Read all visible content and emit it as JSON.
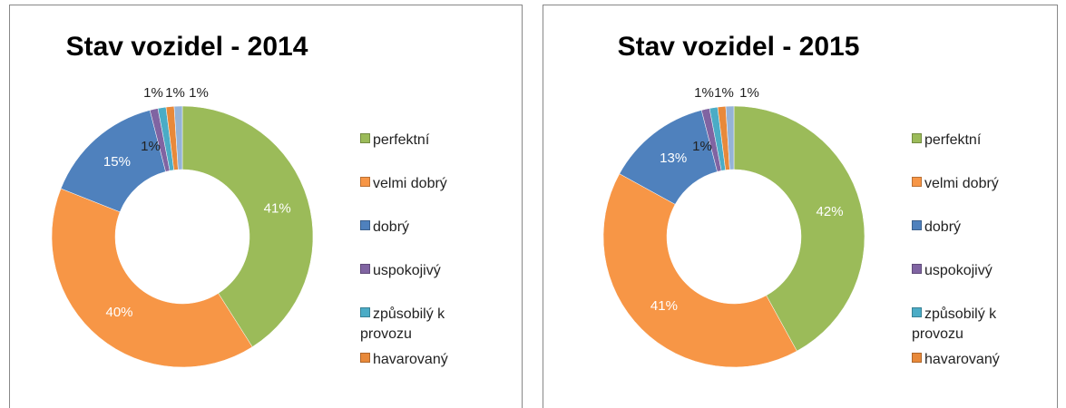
{
  "chart_data": [
    {
      "type": "donut",
      "title": "Stav vozidel - 2014",
      "categories": [
        "perfektní",
        "velmi dobrý",
        "dobrý",
        "uspokojivý",
        "způsobilý k provozu",
        "havarovaný",
        null
      ],
      "values": [
        41,
        40,
        15,
        1,
        1,
        1,
        1
      ],
      "value_labels": [
        "41%",
        "40%",
        "15%",
        "1%",
        "1%",
        "1%",
        "1%"
      ],
      "colors": [
        "#9bbb59",
        "#f79646",
        "#4f81bd",
        "#8064a2",
        "#4bacc6",
        "#e8893a",
        "#95b3d7"
      ],
      "legend": "right"
    },
    {
      "type": "donut",
      "title": "Stav vozidel - 2015",
      "categories": [
        "perfektní",
        "velmi dobrý",
        "dobrý",
        "uspokojivý",
        "způsobilý k provozu",
        "havarovaný",
        null
      ],
      "values": [
        42,
        41,
        13,
        1,
        1,
        1,
        1
      ],
      "value_labels": [
        "42%",
        "41%",
        "13%",
        "1%",
        "1%",
        "1%",
        "1%"
      ],
      "colors": [
        "#9bbb59",
        "#f79646",
        "#4f81bd",
        "#8064a2",
        "#4bacc6",
        "#e8893a",
        "#95b3d7"
      ],
      "legend": "right"
    }
  ]
}
